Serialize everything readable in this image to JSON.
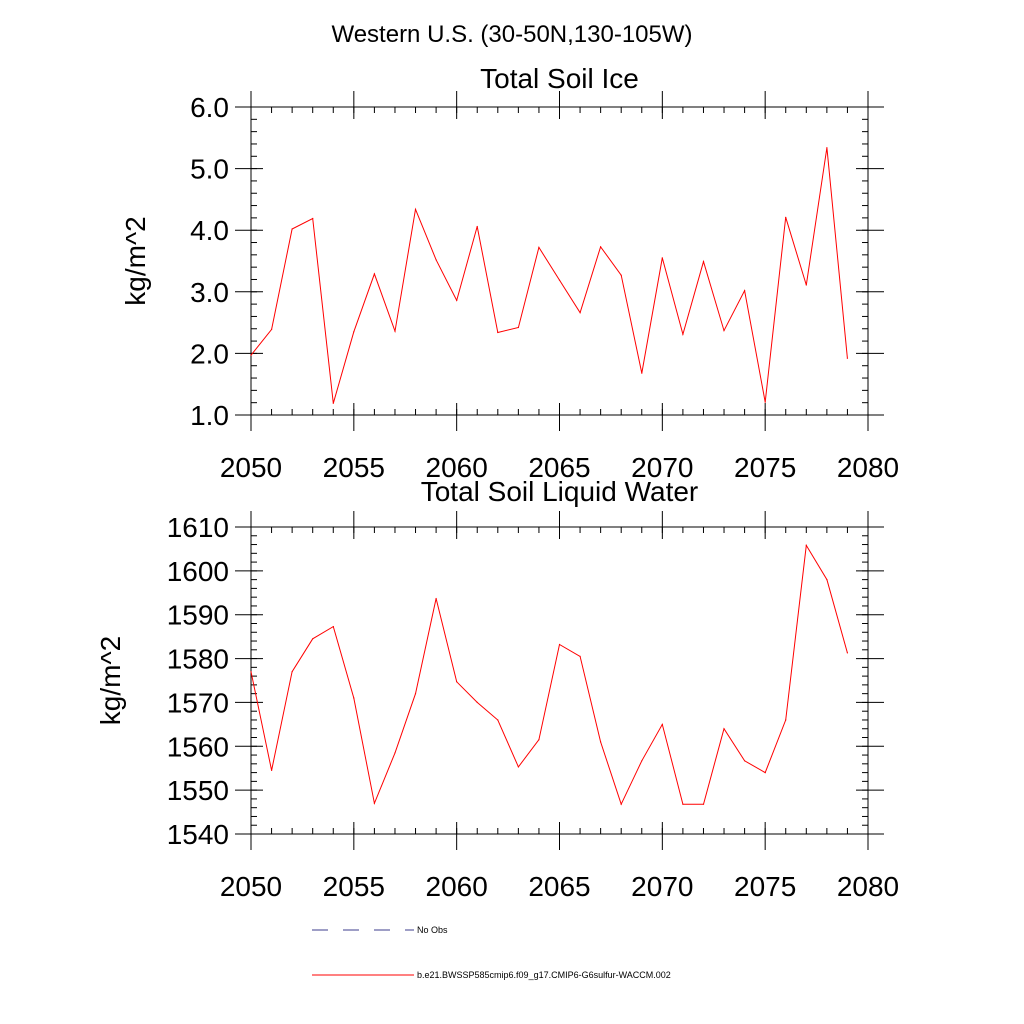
{
  "figure": {
    "suptitle": "Western U.S. (30-50N,130-105W)"
  },
  "chart_data": [
    {
      "type": "line",
      "title": "Total Soil Ice",
      "xlabel": "",
      "ylabel": "kg/m^2",
      "xlim": [
        2050,
        2080
      ],
      "ylim": [
        1.0,
        6.0
      ],
      "xticks": [
        2050,
        2055,
        2060,
        2065,
        2070,
        2075,
        2080
      ],
      "xtick_labels": [
        "2050",
        "2055",
        "2060",
        "2065",
        "2070",
        "2075",
        "2080"
      ],
      "yticks": [
        1.0,
        2.0,
        3.0,
        4.0,
        5.0,
        6.0
      ],
      "ytick_labels": [
        "1.0",
        "2.0",
        "3.0",
        "4.0",
        "5.0",
        "6.0"
      ],
      "y_minor_step": 0.2,
      "x_minor_step": 1,
      "grid": false,
      "series": [
        {
          "name": "b.e21.BWSSP585cmip6.f09_g17.CMIP6-G6sulfur-WACCM.002",
          "color": "#ff0000",
          "x": [
            2050,
            2051,
            2052,
            2053,
            2054,
            2055,
            2056,
            2057,
            2058,
            2059,
            2060,
            2061,
            2062,
            2063,
            2064,
            2065,
            2066,
            2067,
            2068,
            2069,
            2070,
            2071,
            2072,
            2073,
            2074,
            2075,
            2076,
            2077,
            2078,
            2079
          ],
          "values": [
            1.97,
            2.39,
            4.02,
            4.19,
            1.19,
            2.35,
            3.29,
            2.36,
            4.34,
            3.52,
            2.86,
            4.06,
            2.34,
            2.42,
            3.72,
            3.19,
            2.66,
            3.73,
            3.27,
            1.68,
            3.55,
            2.31,
            3.49,
            2.37,
            3.02,
            1.21,
            4.21,
            3.11,
            5.34,
            1.92
          ]
        }
      ]
    },
    {
      "type": "line",
      "title": "Total Soil Liquid Water",
      "xlabel": "",
      "ylabel": "kg/m^2",
      "xlim": [
        2050,
        2080
      ],
      "ylim": [
        1540,
        1610
      ],
      "xticks": [
        2050,
        2055,
        2060,
        2065,
        2070,
        2075,
        2080
      ],
      "xtick_labels": [
        "2050",
        "2055",
        "2060",
        "2065",
        "2070",
        "2075",
        "2080"
      ],
      "yticks": [
        1540,
        1550,
        1560,
        1570,
        1580,
        1590,
        1600,
        1610
      ],
      "ytick_labels": [
        "1540",
        "1550",
        "1560",
        "1570",
        "1580",
        "1590",
        "1600",
        "1610"
      ],
      "y_minor_step": 2,
      "x_minor_step": 1,
      "grid": false,
      "series": [
        {
          "name": "b.e21.BWSSP585cmip6.f09_g17.CMIP6-G6sulfur-WACCM.002",
          "color": "#ff0000",
          "x": [
            2050,
            2051,
            2052,
            2053,
            2054,
            2055,
            2056,
            2057,
            2058,
            2059,
            2060,
            2061,
            2062,
            2063,
            2064,
            2065,
            2066,
            2067,
            2068,
            2069,
            2070,
            2071,
            2072,
            2073,
            2074,
            2075,
            2076,
            2077,
            2078,
            2079
          ],
          "values": [
            1577,
            1554.5,
            1577,
            1584.5,
            1587.3,
            1571,
            1547,
            1558.5,
            1572,
            1593.7,
            1574.7,
            1570,
            1566,
            1555.3,
            1561.5,
            1583.2,
            1580.5,
            1561,
            1546.8,
            1556.7,
            1565,
            1546.8,
            1546.8,
            1564,
            1556.7,
            1554,
            1566,
            1605.8,
            1598,
            1581.3
          ]
        }
      ]
    }
  ],
  "legend": {
    "placement": "bottom",
    "entries": [
      {
        "label": "No Obs",
        "color": "#3c3c8c",
        "dash": "dashed"
      },
      {
        "label": "b.e21.BWSSP585cmip6.f09_g17.CMIP6-G6sulfur-WACCM.002",
        "color": "#ff0000",
        "dash": "solid"
      }
    ]
  }
}
